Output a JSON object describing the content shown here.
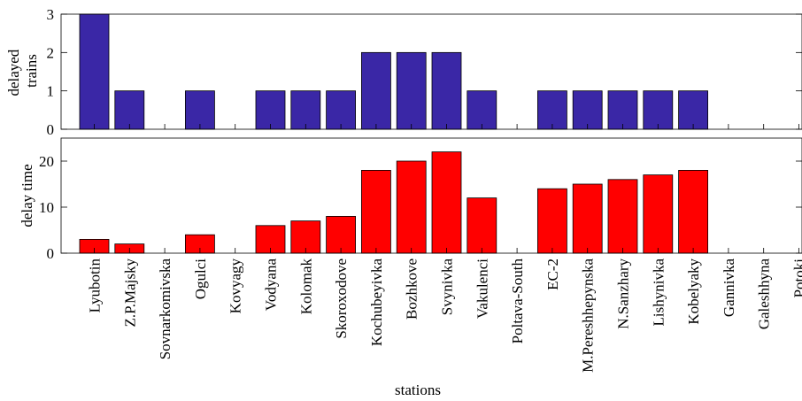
{
  "chart_data": [
    {
      "type": "bar",
      "ylabel_lines": [
        "delayed",
        "trains"
      ],
      "ylim": [
        0,
        3
      ],
      "yticks": [
        0,
        1,
        2,
        3
      ],
      "color": "#3a27a6",
      "values": [
        3,
        1,
        0,
        1,
        0,
        1,
        1,
        1,
        2,
        2,
        2,
        1,
        0,
        1,
        1,
        1,
        1,
        1,
        0,
        0,
        0
      ]
    },
    {
      "type": "bar",
      "ylabel": "delay time",
      "ylim": [
        0,
        25
      ],
      "yticks": [
        0,
        10,
        20
      ],
      "color": "#ff0000",
      "values": [
        3,
        2,
        0,
        4,
        0,
        6,
        7,
        8,
        18,
        20,
        22,
        12,
        0,
        14,
        15,
        16,
        17,
        18,
        0,
        0,
        0
      ]
    }
  ],
  "categories": [
    "Lyubotin",
    "Z.P.Majsky",
    "Sovnarkomivska",
    "Ogulci",
    "Kovyagy",
    "Vodyana",
    "Kolomak",
    "Skoroxodove",
    "Kochubeyivka",
    "Bozhkove",
    "Svynivka",
    "Vakulenci",
    "Poltava-South",
    "EC-2",
    "M.Pereshhepynska",
    "N.Sanzhary",
    "Lishynivka",
    "Kobelyaky",
    "Gannivka",
    "Galeshhyna",
    "Potoki"
  ],
  "xlabel": "stations",
  "grid": false
}
